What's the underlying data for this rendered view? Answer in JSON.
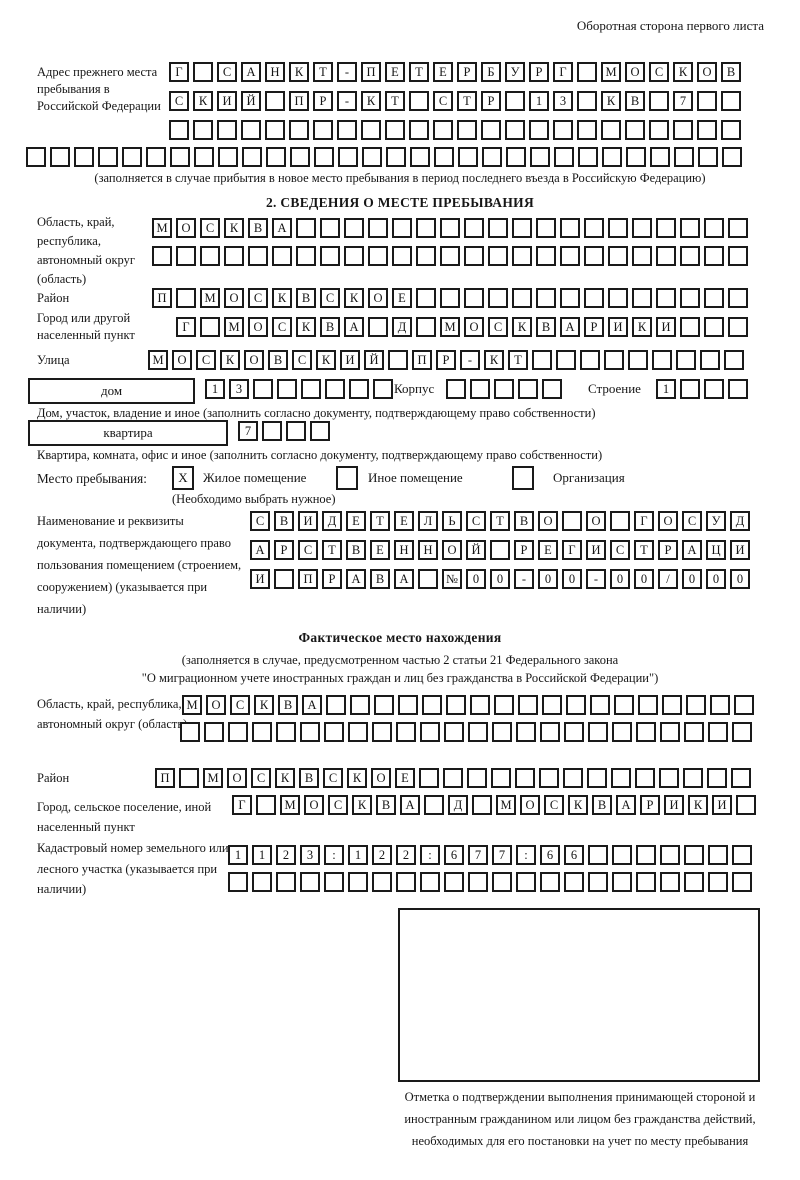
{
  "header": {
    "back_note": "Оборотная сторона первого листа"
  },
  "prev_address": {
    "label": "Адрес прежнего места пребывания в Российской Федерации",
    "row1": {
      "text": "Г САНКТ-ПЕТЕРБУРГ МОСКОВ",
      "len": 24
    },
    "row2": {
      "text": "СКИЙ ПР-КТ СТР 13 КВ 7",
      "len": 24
    },
    "row3": {
      "text": "",
      "len": 24
    },
    "row4": {
      "text": "",
      "len": 30
    },
    "note": "(заполняется в случае прибытия в новое место пребывания в период последнего въезда в Российскую Федерацию)"
  },
  "section2": {
    "title": "2. СВЕДЕНИЯ О МЕСТЕ ПРЕБЫВАНИЯ",
    "region": {
      "label": "Область, край, республика, автономный округ (область)",
      "row1": {
        "text": "МОСКВА",
        "len": 25
      },
      "row2": {
        "text": "",
        "len": 25
      }
    },
    "district": {
      "label": "Район",
      "row": {
        "text": "П МОСКВСКОЕ",
        "len": 25
      }
    },
    "city": {
      "label": "Город или другой населенный пункт",
      "row": {
        "text": "Г МОСКВА Д МОСКВАРИКИ",
        "len": 24
      }
    },
    "street": {
      "label": "Улица",
      "row": {
        "text": "МОСКОВСКИЙ ПР-КТ",
        "len": 25
      }
    },
    "house": {
      "box_label": "дом",
      "cells": {
        "text": "13",
        "len": 8
      },
      "korpus_label": "Корпус",
      "korpus_cells": {
        "text": "",
        "len": 5
      },
      "stroenie_label": "Строение",
      "stroenie_cells": {
        "text": "1",
        "len": 4
      },
      "note": "Дом, участок, владение и иное (заполнить согласно документу, подтверждающему право собственности)"
    },
    "apartment": {
      "box_label": "квартира",
      "cells": {
        "text": "7",
        "len": 4
      },
      "note": "Квартира, комната, офис и иное (заполнить согласно документу, подтверждающему право собственности)"
    },
    "stay": {
      "label": "Место пребывания:",
      "options": [
        {
          "mark": "X",
          "label": "Жилое помещение"
        },
        {
          "mark": "",
          "label": "Иное помещение"
        },
        {
          "mark": "",
          "label": "Организация"
        }
      ],
      "note": "(Необходимо выбрать нужное)"
    },
    "document": {
      "label": "Наименование и реквизиты документа, подтверждающего право пользования помещением (строением, сооружением) (указывается при наличии)",
      "row1": {
        "text": "СВИДЕТЕЛЬСТВО О ГОСУД",
        "len": 21
      },
      "row2": {
        "text": "АРСТВЕННОЙ РЕГИСТРАЦИ",
        "len": 21
      },
      "row3": {
        "text": "И ПРАВА №00-00-00/000",
        "len": 21
      }
    }
  },
  "actual_location": {
    "title": "Фактическое место нахождения",
    "note_line1": "(заполняется в случае, предусмотренном частью 2 статьи 21 Федерального закона",
    "note_line2": "\"О миграционном учете иностранных граждан и лиц без гражданства в Российской Федерации\")",
    "region": {
      "label": "Область, край, республика, автономный округ (область)",
      "row1": {
        "text": "МОСКВА",
        "len": 24
      },
      "row2": {
        "text": "",
        "len": 24
      }
    },
    "district": {
      "label": "Район",
      "row": {
        "text": "П МОСКВСКОЕ",
        "len": 25
      }
    },
    "city": {
      "label": "Город, сельское поселение, иной населенный пункт",
      "row": {
        "text": "Г МОСКВА Д МОСКВАРИКИ",
        "len": 22
      }
    },
    "cadastre": {
      "label": "Кадастровый номер земельного или лесного участка (указывается при наличии)",
      "row1": {
        "text": "1123:122:677:66",
        "len": 22
      },
      "row2": {
        "text": "",
        "len": 22
      }
    }
  },
  "stamp": {
    "note": "Отметка о подтверждении выполнения принимающей стороной и иностранным гражданином или лицом без гражданства действий, необходимых для его постановки на учет по месту пребывания"
  }
}
